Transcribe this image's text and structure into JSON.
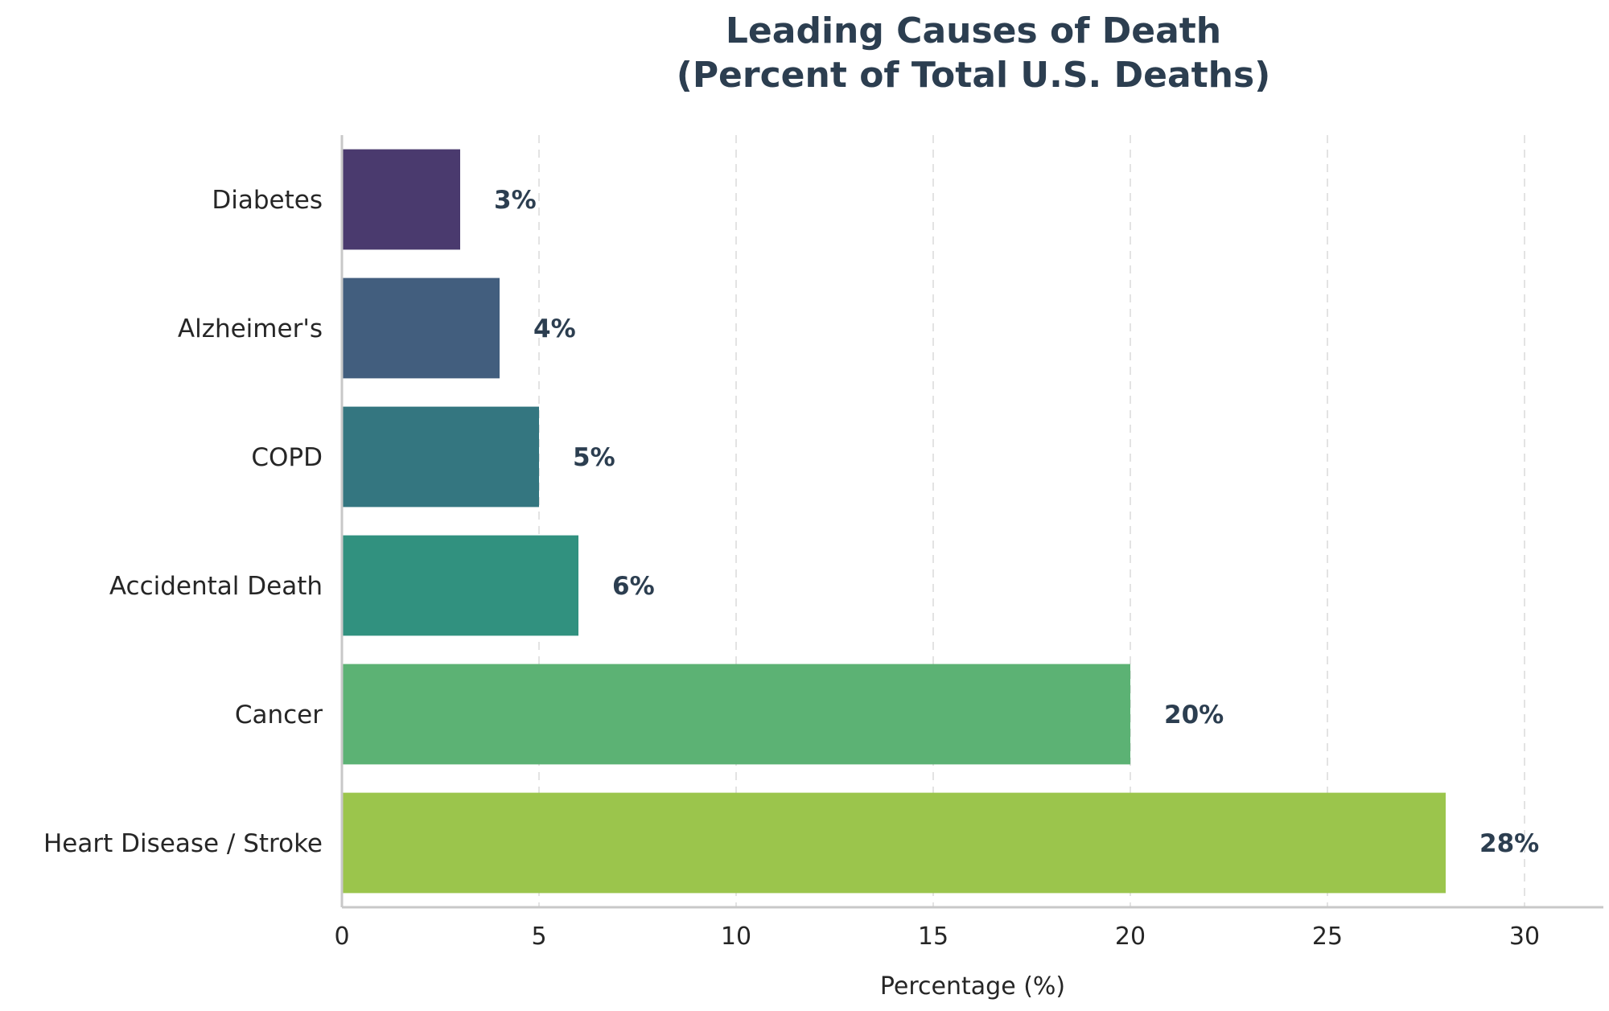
{
  "chart_data": {
    "type": "bar",
    "orientation": "horizontal",
    "title_lines": [
      "Leading Causes of Death",
      "(Percent of Total U.S. Deaths)"
    ],
    "xlabel": "Percentage (%)",
    "ylabel": "",
    "categories": [
      "Heart Disease / Stroke",
      "Cancer",
      "Accidental Death",
      "COPD",
      "Alzheimer's",
      "Diabetes"
    ],
    "values": [
      28,
      20,
      6,
      5,
      4,
      3
    ],
    "value_labels": [
      "28%",
      "20%",
      "6%",
      "5%",
      "4%",
      "3%"
    ],
    "colors": [
      "#9bc54c",
      "#5cb274",
      "#31917f",
      "#347680",
      "#425e7e",
      "#4a3a6e"
    ],
    "xlim": [
      0,
      32
    ],
    "xticks": [
      0,
      5,
      10,
      15,
      20,
      25,
      30
    ],
    "xtick_labels": [
      "0",
      "5",
      "10",
      "15",
      "20",
      "25",
      "30"
    ],
    "grid": "vertical dashed",
    "legend": "none"
  }
}
